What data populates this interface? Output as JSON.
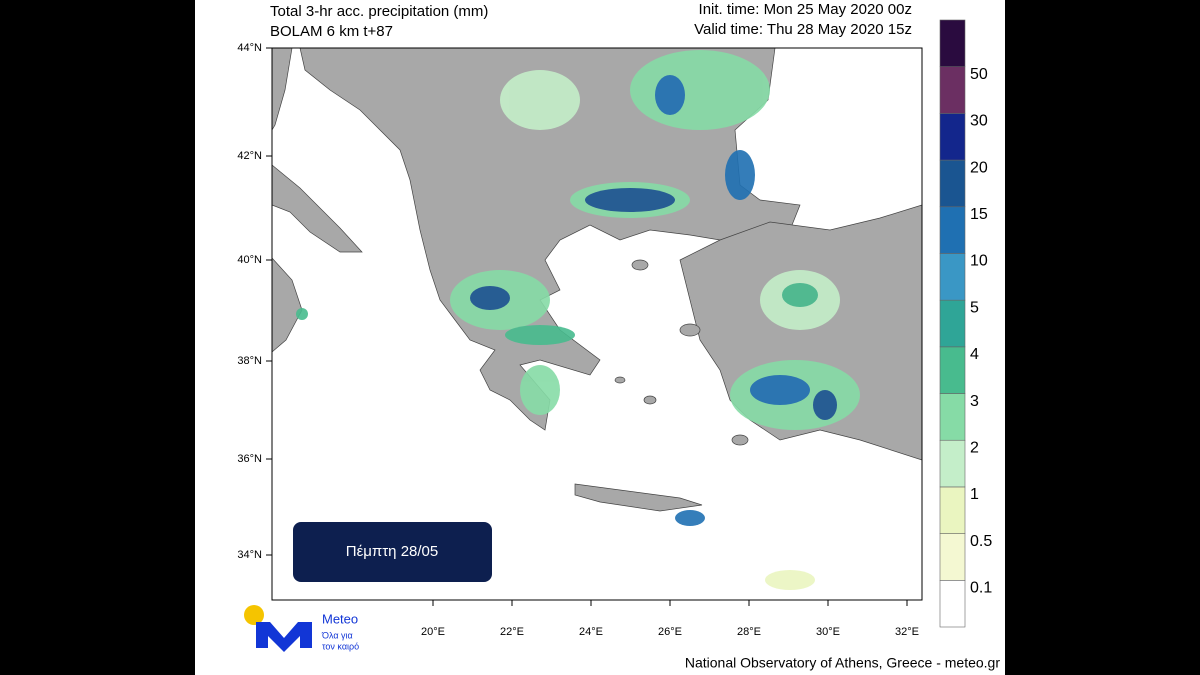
{
  "header": {
    "title": "Total 3-hr acc. precipitation (mm)",
    "model": "BOLAM 6 km t+87",
    "init_time": "Init. time: Mon 25 May 2020 00z",
    "valid_time": "Valid time: Thu 28 May 2020 15z"
  },
  "map": {
    "lat_labels": [
      "44°N",
      "42°N",
      "40°N",
      "38°N",
      "36°N",
      "34°N"
    ],
    "lon_labels": [
      "20°E",
      "22°E",
      "24°E",
      "26°E",
      "28°E",
      "30°E",
      "32°E"
    ]
  },
  "colorbar": {
    "levels": [
      0.1,
      0.5,
      1,
      2,
      3,
      4,
      5,
      10,
      15,
      20,
      30,
      50
    ],
    "colors": [
      "#ffffff",
      "#f4f8d2",
      "#eaf5c0",
      "#c4eec9",
      "#86dba6",
      "#48bb8e",
      "#2fa597",
      "#3a97c5",
      "#1f70b2",
      "#1a5591",
      "#13268c",
      "#6b2f62",
      "#2a0b3f"
    ]
  },
  "badge": "Πέμπτη 28/05",
  "logo": {
    "name": "Meteo",
    "tagline": [
      "Όλα για",
      "τον καιρό"
    ]
  },
  "footer": "National Observatory of Athens, Greece - meteo.gr"
}
